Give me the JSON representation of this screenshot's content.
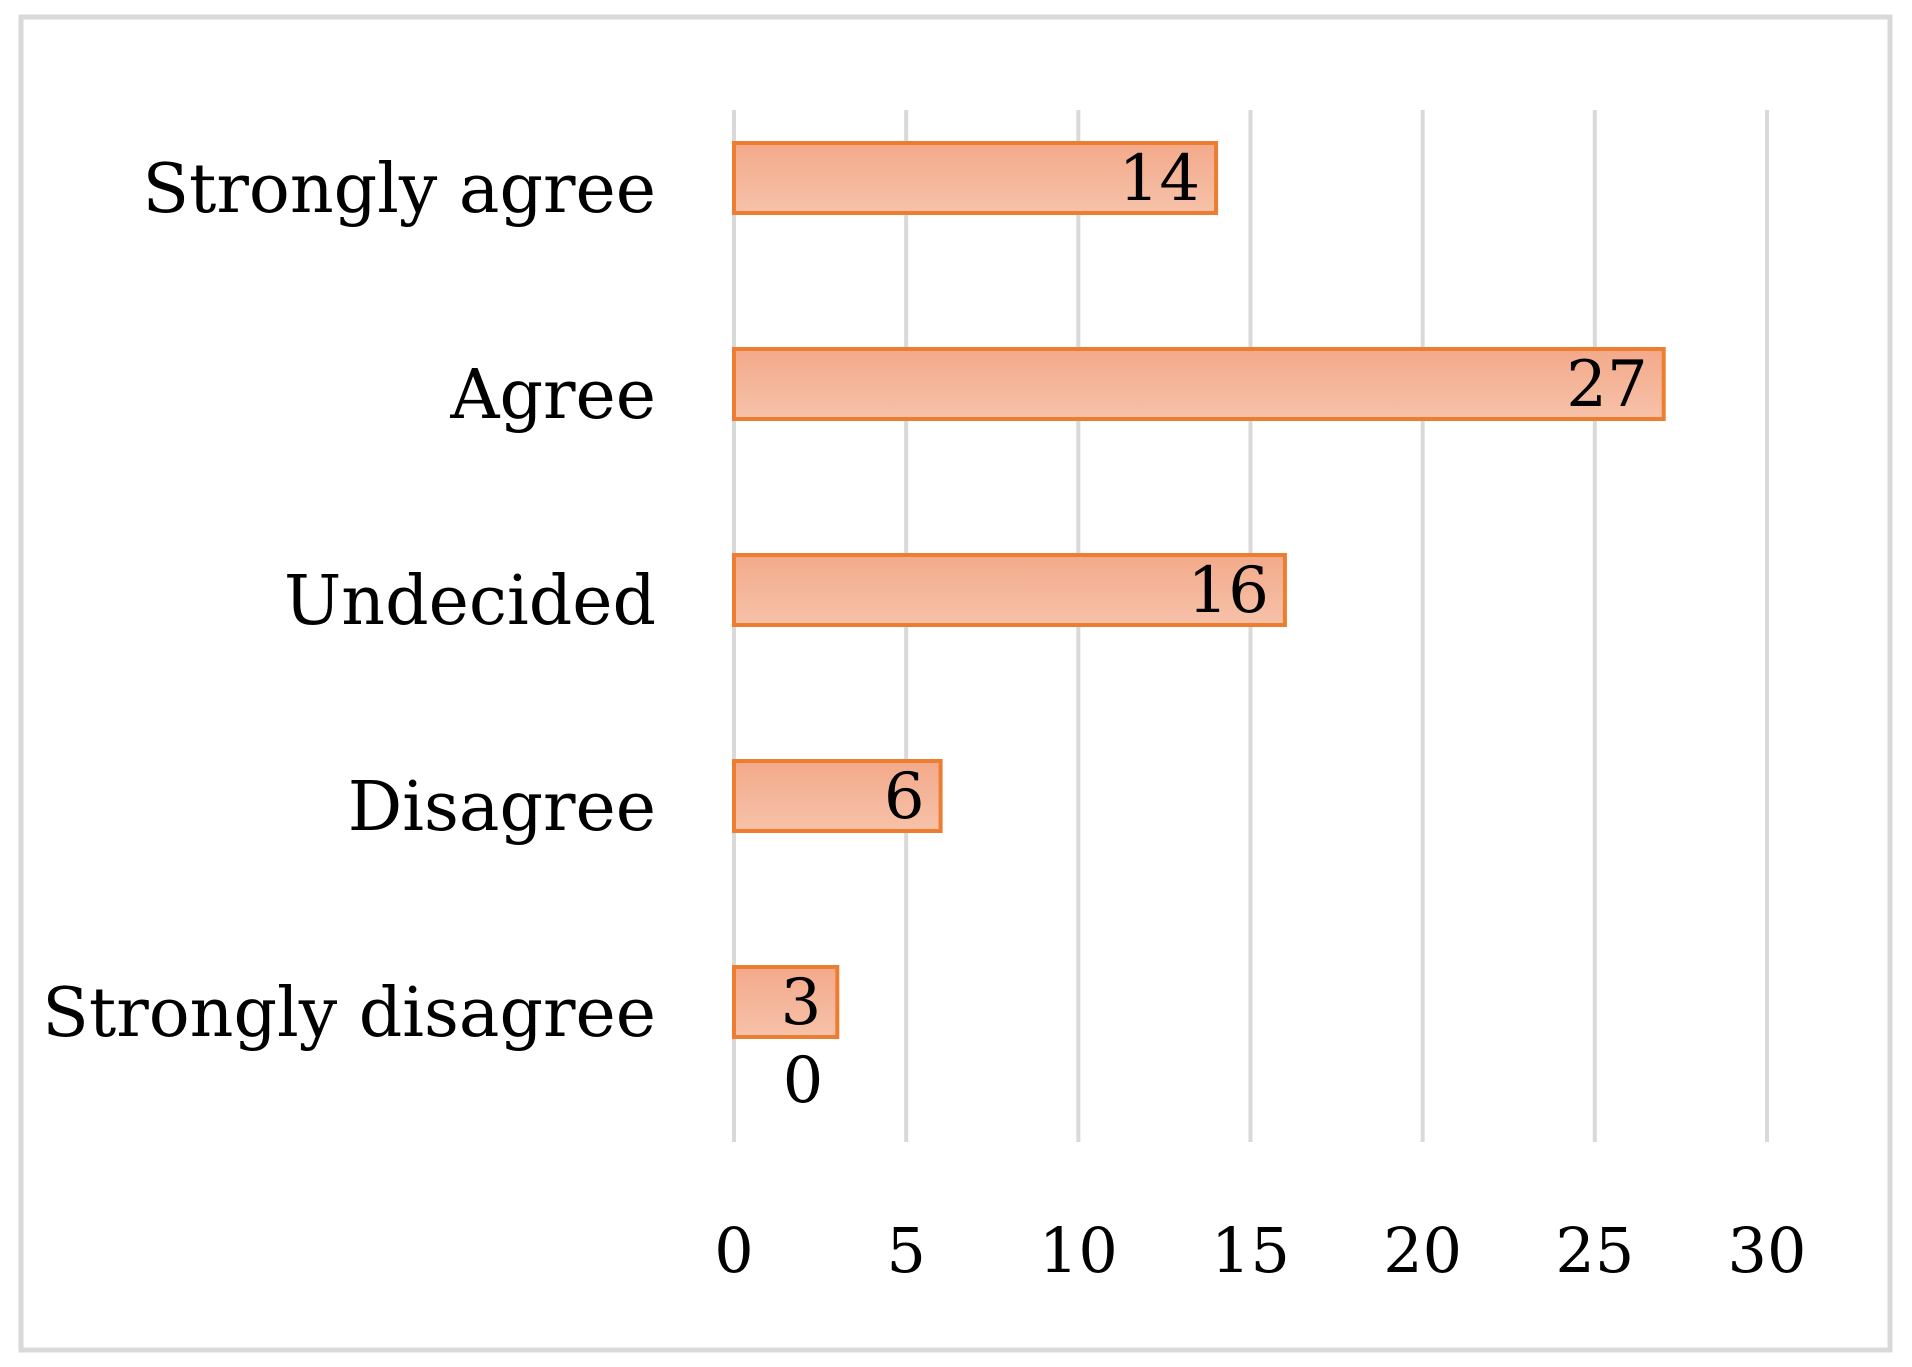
{
  "chart_data": {
    "type": "bar",
    "orientation": "horizontal",
    "categories": [
      "Strongly agree",
      "Agree",
      "Undecided",
      "Disagree",
      "Strongly disagree"
    ],
    "values": [
      14,
      27,
      16,
      6,
      3
    ],
    "data_labels": [
      "14",
      "27",
      "16",
      "6",
      "3"
    ],
    "extra_label": "0",
    "title": "",
    "xlabel": "",
    "ylabel": "",
    "xlim": [
      0,
      30
    ],
    "x_ticks": [
      "0",
      "5",
      "10",
      "15",
      "20",
      "25",
      "30"
    ],
    "grid": "vertical",
    "legend": "none",
    "colors": {
      "bar_fill_top": "#f3a98a",
      "bar_fill_bottom": "#f6c2a9",
      "bar_border": "#ed7d31",
      "grid": "#d9d9d9",
      "frame": "#d9d9d9"
    }
  }
}
